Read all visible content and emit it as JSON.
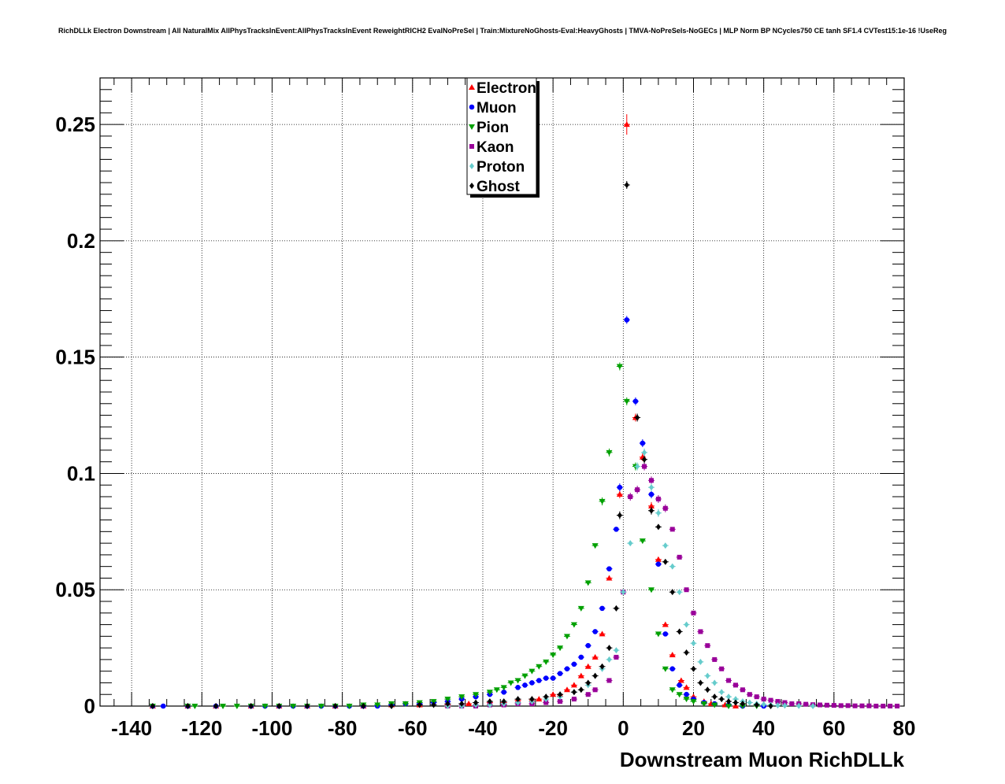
{
  "chart_data": {
    "type": "scatter",
    "title": "RichDLLk Electron Downstream | All NaturalMix AllPhysTracksInEvent:AllPhysTracksInEvent ReweightRICH2 EvalNoPreSel | Train:MixtureNoGhosts-Eval:HeavyGhosts | TMVA-NoPreSels-NoGECs | MLP Norm BP NCycles750 CE tanh SF1.4 CVTest15:1e-16 !UseReg",
    "xlabel": "Downstream Muon RichDLLk",
    "ylabel": "",
    "xlim": [
      -149,
      80
    ],
    "ylim": [
      0,
      0.27
    ],
    "x_ticks": [
      -140,
      -120,
      -100,
      -80,
      -60,
      -40,
      -20,
      0,
      20,
      40,
      60,
      80
    ],
    "x_tick_labels": [
      "-140",
      "-120",
      "-100",
      "-80",
      "-60",
      "-40",
      "-20",
      "0",
      "20",
      "40",
      "60",
      "80"
    ],
    "y_ticks": [
      0,
      0.05,
      0.1,
      0.15,
      0.2,
      0.25
    ],
    "y_tick_labels": [
      "0",
      "0.05",
      "0.1",
      "0.15",
      "0.2",
      "0.25"
    ],
    "grid": true,
    "legend_position": "top-center",
    "series": [
      {
        "name": "Electron",
        "color": "#ff0000",
        "marker": "triangle-up",
        "points": [
          [
            -134,
            0.0
          ],
          [
            -124,
            0.0
          ],
          [
            -116,
            0.0
          ],
          [
            -106,
            0.0
          ],
          [
            -98,
            0.0
          ],
          [
            -90,
            0.0
          ],
          [
            -82,
            0.0
          ],
          [
            -74,
            0.0
          ],
          [
            -66,
            0.0005
          ],
          [
            -58,
            0.0005
          ],
          [
            -50,
            0.0005
          ],
          [
            -44,
            0.001
          ],
          [
            -38,
            0.0015
          ],
          [
            -34,
            0.0015
          ],
          [
            -30,
            0.0025
          ],
          [
            -26,
            0.003
          ],
          [
            -24,
            0.003
          ],
          [
            -20,
            0.005
          ],
          [
            -18,
            0.005
          ],
          [
            -16,
            0.007
          ],
          [
            -14,
            0.009
          ],
          [
            -12,
            0.013
          ],
          [
            -10,
            0.017
          ],
          [
            -8,
            0.021
          ],
          [
            -6,
            0.031
          ],
          [
            -4,
            0.055
          ],
          [
            -1,
            0.091
          ],
          [
            1,
            0.25
          ],
          [
            3.5,
            0.124
          ],
          [
            5.5,
            0.107
          ],
          [
            8,
            0.086
          ],
          [
            10,
            0.063
          ],
          [
            12,
            0.035
          ],
          [
            14,
            0.022
          ],
          [
            16.5,
            0.011
          ],
          [
            18,
            0.008
          ],
          [
            20,
            0.004
          ],
          [
            23,
            0.002
          ],
          [
            25,
            0.001
          ],
          [
            29,
            0.0005
          ],
          [
            32,
            0.0
          ]
        ]
      },
      {
        "name": "Muon",
        "color": "#0000ff",
        "marker": "circle",
        "points": [
          [
            -134,
            0.0
          ],
          [
            -131,
            0.0
          ],
          [
            -124,
            0.0
          ],
          [
            -116,
            0.0
          ],
          [
            -106,
            0.0
          ],
          [
            -102,
            0.0
          ],
          [
            -98,
            0.0
          ],
          [
            -94,
            0.0
          ],
          [
            -90,
            0.0
          ],
          [
            -86,
            0.0
          ],
          [
            -82,
            0.0
          ],
          [
            -78,
            0.0
          ],
          [
            -74,
            0.0
          ],
          [
            -70,
            0.0
          ],
          [
            -66,
            0.0005
          ],
          [
            -62,
            0.001
          ],
          [
            -58,
            0.001
          ],
          [
            -54,
            0.0015
          ],
          [
            -50,
            0.002
          ],
          [
            -46,
            0.003
          ],
          [
            -42,
            0.004
          ],
          [
            -38,
            0.005
          ],
          [
            -34,
            0.006
          ],
          [
            -30,
            0.008
          ],
          [
            -28,
            0.009
          ],
          [
            -26,
            0.01
          ],
          [
            -24,
            0.011
          ],
          [
            -22,
            0.012
          ],
          [
            -20,
            0.012
          ],
          [
            -18,
            0.014
          ],
          [
            -16,
            0.016
          ],
          [
            -14,
            0.018
          ],
          [
            -12,
            0.021
          ],
          [
            -10,
            0.026
          ],
          [
            -8,
            0.032
          ],
          [
            -6,
            0.042
          ],
          [
            -4,
            0.059
          ],
          [
            -2,
            0.076
          ],
          [
            -1,
            0.094
          ],
          [
            1,
            0.166
          ],
          [
            3.5,
            0.131
          ],
          [
            5.5,
            0.113
          ],
          [
            8,
            0.091
          ],
          [
            10,
            0.061
          ],
          [
            12,
            0.031
          ],
          [
            14,
            0.016
          ],
          [
            16,
            0.009
          ],
          [
            18,
            0.005
          ],
          [
            20,
            0.003
          ],
          [
            23,
            0.0015
          ],
          [
            26,
            0.001
          ],
          [
            30,
            0.0005
          ],
          [
            34,
            0.0
          ],
          [
            40,
            0.0
          ]
        ]
      },
      {
        "name": "Pion",
        "color": "#00a000",
        "marker": "triangle-down",
        "points": [
          [
            -134,
            0.0
          ],
          [
            -124,
            0.0
          ],
          [
            -122,
            0.0
          ],
          [
            -114,
            0.0
          ],
          [
            -110,
            0.0
          ],
          [
            -106,
            0.0
          ],
          [
            -102,
            0.0
          ],
          [
            -98,
            0.0
          ],
          [
            -94,
            0.0
          ],
          [
            -90,
            0.0
          ],
          [
            -86,
            0.0
          ],
          [
            -82,
            0.0
          ],
          [
            -78,
            0.0
          ],
          [
            -74,
            0.0005
          ],
          [
            -70,
            0.0005
          ],
          [
            -66,
            0.001
          ],
          [
            -62,
            0.001
          ],
          [
            -58,
            0.0015
          ],
          [
            -54,
            0.002
          ],
          [
            -50,
            0.003
          ],
          [
            -46,
            0.004
          ],
          [
            -42,
            0.005
          ],
          [
            -38,
            0.006
          ],
          [
            -36,
            0.007
          ],
          [
            -34,
            0.008
          ],
          [
            -32,
            0.01
          ],
          [
            -30,
            0.011
          ],
          [
            -28,
            0.013
          ],
          [
            -26,
            0.015
          ],
          [
            -24,
            0.017
          ],
          [
            -22,
            0.019
          ],
          [
            -20,
            0.022
          ],
          [
            -18,
            0.025
          ],
          [
            -16,
            0.03
          ],
          [
            -14,
            0.035
          ],
          [
            -12,
            0.042
          ],
          [
            -10,
            0.053
          ],
          [
            -8,
            0.069
          ],
          [
            -6,
            0.088
          ],
          [
            -4,
            0.109
          ],
          [
            -1,
            0.146
          ],
          [
            1,
            0.131
          ],
          [
            3.5,
            0.103
          ],
          [
            5.5,
            0.071
          ],
          [
            8,
            0.05
          ],
          [
            10,
            0.031
          ],
          [
            12,
            0.016
          ],
          [
            14,
            0.007
          ],
          [
            16,
            0.005
          ],
          [
            18,
            0.003
          ],
          [
            20,
            0.002
          ],
          [
            23,
            0.001
          ],
          [
            26,
            0.0005
          ],
          [
            30,
            0.0
          ],
          [
            34,
            0.0
          ],
          [
            38,
            0.0
          ]
        ]
      },
      {
        "name": "Kaon",
        "color": "#990099",
        "marker": "square",
        "points": [
          [
            -50,
            0.0
          ],
          [
            -46,
            0.0
          ],
          [
            -42,
            0.0
          ],
          [
            -38,
            0.0005
          ],
          [
            -34,
            0.0005
          ],
          [
            -30,
            0.001
          ],
          [
            -26,
            0.001
          ],
          [
            -22,
            0.0015
          ],
          [
            -18,
            0.002
          ],
          [
            -14,
            0.003
          ],
          [
            -10,
            0.005
          ],
          [
            -8,
            0.007
          ],
          [
            -4,
            0.011
          ],
          [
            -2,
            0.021
          ],
          [
            0,
            0.049
          ],
          [
            2,
            0.09
          ],
          [
            4,
            0.093
          ],
          [
            6,
            0.103
          ],
          [
            8,
            0.097
          ],
          [
            10,
            0.089
          ],
          [
            12,
            0.085
          ],
          [
            14,
            0.076
          ],
          [
            16,
            0.064
          ],
          [
            18,
            0.05
          ],
          [
            20,
            0.04
          ],
          [
            22,
            0.032
          ],
          [
            24,
            0.026
          ],
          [
            26,
            0.02
          ],
          [
            28,
            0.016
          ],
          [
            30,
            0.011
          ],
          [
            32,
            0.009
          ],
          [
            34,
            0.007
          ],
          [
            36,
            0.005
          ],
          [
            38,
            0.004
          ],
          [
            40,
            0.003
          ],
          [
            42,
            0.0025
          ],
          [
            44,
            0.002
          ],
          [
            46,
            0.0015
          ],
          [
            48,
            0.001
          ],
          [
            50,
            0.001
          ],
          [
            52,
            0.0008
          ],
          [
            54,
            0.0006
          ],
          [
            56,
            0.0005
          ],
          [
            58,
            0.0004
          ],
          [
            60,
            0.0003
          ],
          [
            62,
            0.0002
          ],
          [
            64,
            0.0002
          ],
          [
            66,
            0.0001
          ],
          [
            68,
            0.0001
          ],
          [
            70,
            0.0001
          ],
          [
            72,
            0.0
          ],
          [
            74,
            0.0
          ],
          [
            76,
            0.0
          ],
          [
            78,
            0.0
          ]
        ]
      },
      {
        "name": "Proton",
        "color": "#66cccc",
        "marker": "diamond",
        "points": [
          [
            -50,
            0.0
          ],
          [
            -46,
            0.0
          ],
          [
            -42,
            0.0005
          ],
          [
            -38,
            0.0005
          ],
          [
            -34,
            0.001
          ],
          [
            -30,
            0.0015
          ],
          [
            -26,
            0.002
          ],
          [
            -22,
            0.003
          ],
          [
            -18,
            0.004
          ],
          [
            -14,
            0.006
          ],
          [
            -10,
            0.009
          ],
          [
            -6,
            0.016
          ],
          [
            -4,
            0.02
          ],
          [
            -2,
            0.024
          ],
          [
            0,
            0.049
          ],
          [
            2,
            0.07
          ],
          [
            4,
            0.103
          ],
          [
            6,
            0.109
          ],
          [
            8,
            0.094
          ],
          [
            10,
            0.083
          ],
          [
            12,
            0.069
          ],
          [
            14,
            0.06
          ],
          [
            16,
            0.049
          ],
          [
            18,
            0.035
          ],
          [
            20,
            0.027
          ],
          [
            22,
            0.019
          ],
          [
            24,
            0.013
          ],
          [
            26,
            0.01
          ],
          [
            28,
            0.006
          ],
          [
            30,
            0.004
          ],
          [
            32,
            0.003
          ],
          [
            34,
            0.002
          ],
          [
            36,
            0.0015
          ],
          [
            38,
            0.001
          ],
          [
            40,
            0.0007
          ],
          [
            42,
            0.0005
          ],
          [
            44,
            0.0003
          ],
          [
            46,
            0.0002
          ],
          [
            50,
            0.0001
          ],
          [
            54,
            0.0
          ]
        ]
      },
      {
        "name": "Ghost",
        "color": "#000000",
        "marker": "diamond",
        "points": [
          [
            -134,
            0.0
          ],
          [
            -124,
            0.0
          ],
          [
            -116,
            0.0
          ],
          [
            -106,
            0.0
          ],
          [
            -98,
            0.0
          ],
          [
            -90,
            0.0
          ],
          [
            -82,
            0.0
          ],
          [
            -74,
            0.0
          ],
          [
            -66,
            0.0
          ],
          [
            -58,
            0.0005
          ],
          [
            -54,
            0.0005
          ],
          [
            -50,
            0.001
          ],
          [
            -46,
            0.001
          ],
          [
            -42,
            0.0015
          ],
          [
            -38,
            0.002
          ],
          [
            -34,
            0.002
          ],
          [
            -30,
            0.003
          ],
          [
            -26,
            0.003
          ],
          [
            -22,
            0.004
          ],
          [
            -18,
            0.005
          ],
          [
            -14,
            0.006
          ],
          [
            -12,
            0.007
          ],
          [
            -10,
            0.01
          ],
          [
            -8,
            0.013
          ],
          [
            -6,
            0.017
          ],
          [
            -4,
            0.025
          ],
          [
            -2,
            0.042
          ],
          [
            -1,
            0.082
          ],
          [
            1,
            0.224
          ],
          [
            4,
            0.124
          ],
          [
            6,
            0.106
          ],
          [
            8,
            0.084
          ],
          [
            10,
            0.077
          ],
          [
            12,
            0.062
          ],
          [
            14,
            0.049
          ],
          [
            16,
            0.032
          ],
          [
            18,
            0.023
          ],
          [
            20,
            0.016
          ],
          [
            22,
            0.01
          ],
          [
            24,
            0.007
          ],
          [
            26,
            0.004
          ],
          [
            28,
            0.003
          ],
          [
            30,
            0.002
          ],
          [
            32,
            0.0015
          ],
          [
            34,
            0.001
          ],
          [
            38,
            0.0005
          ],
          [
            42,
            0.0
          ]
        ]
      }
    ]
  }
}
